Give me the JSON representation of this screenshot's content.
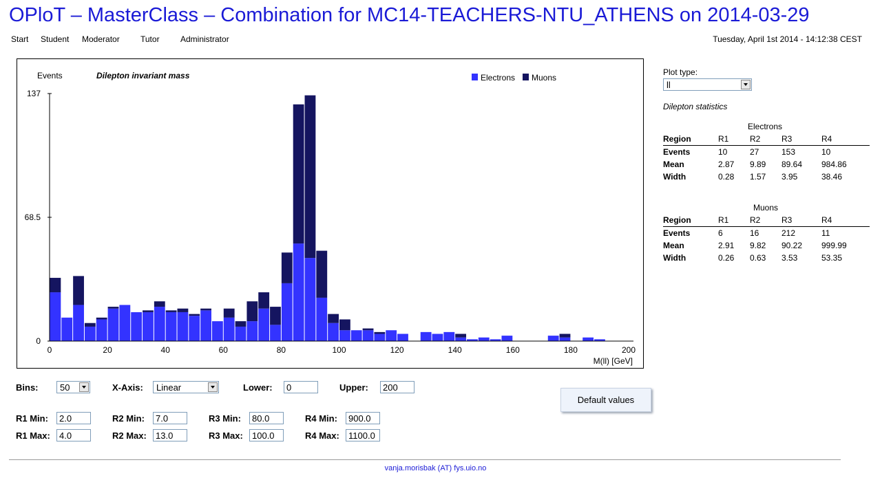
{
  "header": {
    "title": "OPloT – MasterClass – Combination for MC14-TEACHERS-NTU_ATHENS on 2014-03-29",
    "datetime": "Tuesday, April 1st 2014 - 14:12:38 CEST"
  },
  "nav": {
    "items": [
      "Start",
      "Student",
      "Moderator",
      "Tutor",
      "Administrator"
    ]
  },
  "colors": {
    "electrons": "#3333ff",
    "muons": "#151560",
    "title": "#1a1ad6"
  },
  "chart_data": {
    "type": "bar",
    "stacked": true,
    "title": "Dilepton invariant mass",
    "ylabel": "Events",
    "xlabel": "M(ll) [GeV]",
    "xlim": [
      0,
      200
    ],
    "ylim": [
      0,
      137
    ],
    "yticks": [
      "0",
      "68.5",
      "137"
    ],
    "xticks": [
      "0",
      "20",
      "40",
      "60",
      "80",
      "100",
      "120",
      "140",
      "160",
      "180",
      "200"
    ],
    "bin_width": 4,
    "x": [
      0,
      4,
      8,
      12,
      16,
      20,
      24,
      28,
      32,
      36,
      40,
      44,
      48,
      52,
      56,
      60,
      64,
      68,
      72,
      76,
      80,
      84,
      88,
      92,
      96,
      100,
      104,
      108,
      112,
      116,
      120,
      124,
      128,
      132,
      136,
      140,
      144,
      148,
      152,
      156,
      160,
      164,
      168,
      172,
      176,
      180,
      184,
      188,
      192,
      196
    ],
    "legend_position": "top-right",
    "series": [
      {
        "name": "Electrons",
        "values": [
          27,
          13,
          20,
          8,
          12,
          18,
          20,
          16,
          16,
          19,
          16,
          16,
          14,
          17,
          11,
          13,
          8,
          11,
          18,
          9,
          32,
          54,
          46,
          24,
          10,
          6,
          6,
          6,
          4,
          6,
          4,
          0,
          5,
          4,
          5,
          2,
          1,
          2,
          1,
          3,
          0,
          0,
          0,
          3,
          2,
          0,
          2,
          1,
          0,
          0
        ]
      },
      {
        "name": "Muons",
        "values": [
          8,
          0,
          16,
          2,
          1,
          1,
          0,
          0,
          1,
          3,
          1,
          2,
          1,
          1,
          0,
          5,
          3,
          11,
          9,
          10,
          17,
          77,
          90,
          26,
          5,
          6,
          0,
          1,
          1,
          0,
          0,
          0,
          0,
          0,
          0,
          2,
          0,
          0,
          0,
          0,
          0,
          0,
          0,
          0,
          2,
          0,
          0,
          0,
          0,
          0
        ]
      }
    ]
  },
  "side": {
    "plot_type_label": "Plot type:",
    "plot_type_value": "ll",
    "stats_title": "Dilepton statistics",
    "electrons": {
      "title": "Electrons",
      "header": [
        "Region",
        "R1",
        "R2",
        "R3",
        "R4"
      ],
      "rows": [
        [
          "Events",
          "10",
          "27",
          "153",
          "10"
        ],
        [
          "Mean",
          "2.87",
          "9.89",
          "89.64",
          "984.86"
        ],
        [
          "Width",
          "0.28",
          "1.57",
          "3.95",
          "38.46"
        ]
      ]
    },
    "muons": {
      "title": "Muons",
      "header": [
        "Region",
        "R1",
        "R2",
        "R3",
        "R4"
      ],
      "rows": [
        [
          "Events",
          "6",
          "16",
          "212",
          "11"
        ],
        [
          "Mean",
          "2.91",
          "9.82",
          "90.22",
          "999.99"
        ],
        [
          "Width",
          "0.26",
          "0.63",
          "3.53",
          "53.35"
        ]
      ]
    }
  },
  "controls": {
    "bins_label": "Bins:",
    "bins_value": "50",
    "xaxis_label": "X-Axis:",
    "xaxis_value": "Linear",
    "lower_label": "Lower:",
    "lower_value": "0",
    "upper_label": "Upper:",
    "upper_value": "200",
    "default_button": "Default values",
    "r1min_label": "R1 Min:",
    "r1min": "2.0",
    "r1max_label": "R1 Max:",
    "r1max": "4.0",
    "r2min_label": "R2 Min:",
    "r2min": "7.0",
    "r2max_label": "R2 Max:",
    "r2max": "13.0",
    "r3min_label": "R3 Min:",
    "r3min": "80.0",
    "r3max_label": "R3 Max:",
    "r3max": "100.0",
    "r4min_label": "R4 Min:",
    "r4min": "900.0",
    "r4max_label": "R4 Max:",
    "r4max": "1100.0"
  },
  "footer": {
    "contact": "vanja.morisbak (AT) fys.uio.no"
  }
}
